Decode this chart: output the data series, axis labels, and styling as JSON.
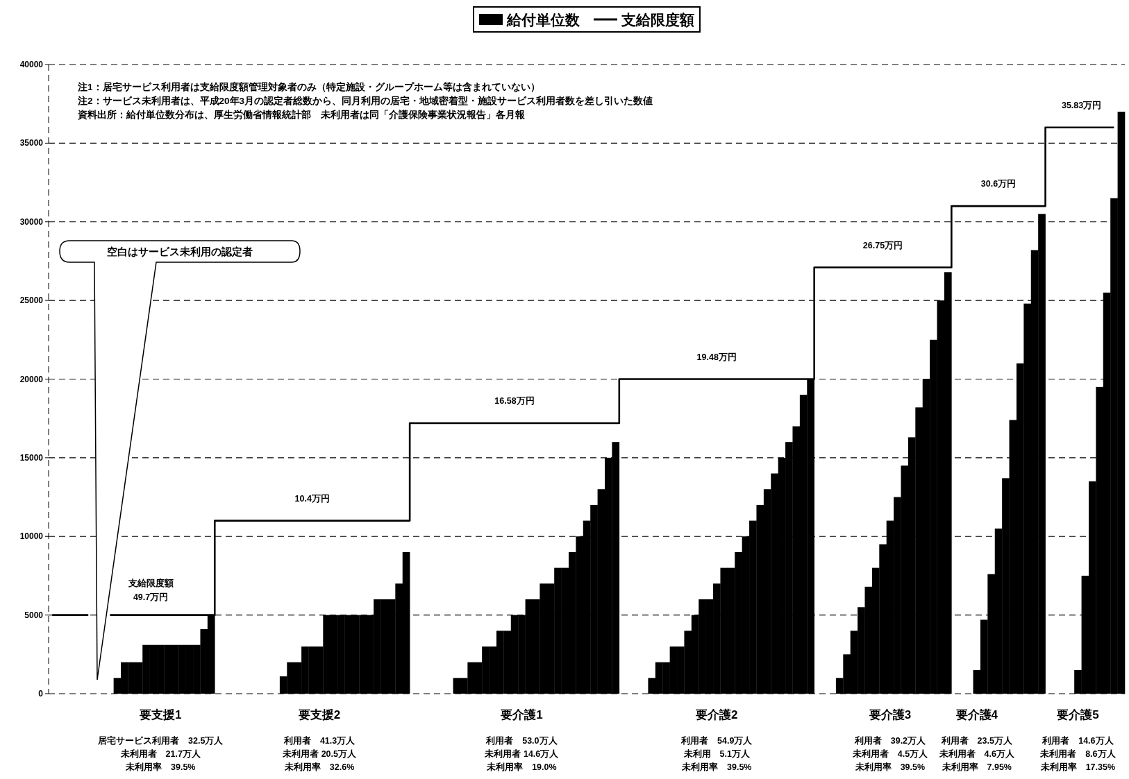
{
  "chart_data": {
    "type": "bar",
    "legend": "top",
    "grid": "y",
    "ylim": [
      0,
      40000
    ],
    "yticks": [
      0,
      5000,
      10000,
      15000,
      20000,
      25000,
      30000,
      35000,
      40000
    ],
    "categories": [
      null,
      null,
      null,
      null,
      null,
      null,
      null,
      null,
      null,
      null,
      null,
      null,
      null,
      null,
      null,
      "要支援1",
      null,
      null,
      null,
      null,
      null,
      null,
      null,
      null,
      null,
      null,
      null,
      null,
      null,
      null,
      null,
      null,
      null,
      null,
      null,
      null,
      null,
      "要支援2",
      null,
      null,
      null,
      null,
      null,
      null,
      null,
      null,
      null,
      null,
      null,
      null,
      null,
      null,
      null,
      null,
      null,
      null,
      null,
      null,
      null,
      null,
      null,
      null,
      null,
      null,
      null,
      "要介護1",
      null,
      null,
      null,
      null,
      null,
      null,
      null,
      null,
      null,
      null,
      null,
      null,
      null,
      null,
      null,
      null,
      null,
      null,
      null,
      null,
      null,
      null,
      null,
      null,
      null,
      null,
      "要介護2",
      null,
      null,
      null,
      null,
      null,
      null,
      null,
      null,
      null,
      null,
      null,
      null,
      null,
      null,
      null,
      null,
      null,
      null,
      null,
      null,
      null,
      null,
      null,
      "要介護3",
      null,
      null,
      null,
      null,
      null,
      null,
      null,
      null,
      null,
      null,
      null,
      "要介護4",
      null,
      null,
      null,
      null,
      null,
      null,
      null,
      null,
      null,
      null,
      null,
      null,
      null,
      "要介護5",
      null,
      null,
      null,
      null,
      null,
      null
    ],
    "series": [
      {
        "name": "給付単位数",
        "color": "#000000",
        "values": [
          null,
          null,
          null,
          null,
          null,
          null,
          null,
          null,
          null,
          1000,
          2000,
          2000,
          2000,
          3100,
          3100,
          3100,
          3100,
          3100,
          3100,
          3100,
          3100,
          4100,
          4950,
          null,
          null,
          null,
          null,
          null,
          null,
          null,
          null,
          null,
          1100,
          2000,
          2000,
          3000,
          3000,
          3000,
          5000,
          5000,
          5000,
          5000,
          5000,
          5000,
          5000,
          6000,
          6000,
          6000,
          7000,
          9000,
          null,
          null,
          null,
          null,
          null,
          null,
          1000,
          1000,
          2000,
          2000,
          3000,
          3000,
          4000,
          4000,
          5000,
          5000,
          6000,
          6000,
          7000,
          7000,
          8000,
          8000,
          9000,
          10000,
          11000,
          12000,
          13000,
          15000,
          16000,
          null,
          null,
          null,
          null,
          1000,
          2000,
          2000,
          3000,
          3000,
          4000,
          5000,
          6000,
          6000,
          7000,
          8000,
          8000,
          9000,
          10000,
          11000,
          12000,
          13000,
          14000,
          15000,
          16000,
          17000,
          19000,
          20000,
          null,
          null,
          null,
          1000,
          2500,
          4000,
          5500,
          6800,
          8000,
          9500,
          11000,
          12500,
          14500,
          16300,
          18200,
          20000,
          22500,
          25000,
          26800,
          null,
          null,
          null,
          1500,
          4700,
          7600,
          10500,
          13700,
          17400,
          21000,
          24800,
          28200,
          30500,
          null,
          null,
          null,
          null,
          1500,
          7500,
          13500,
          19500,
          25500,
          31500,
          37000
        ]
      },
      {
        "name": "支給限度額",
        "type": "step",
        "color": "#000000",
        "values": [
          5000,
          5000,
          5000,
          5000,
          5000,
          5000,
          null,
          null,
          5000,
          5000,
          5000,
          5000,
          5000,
          5000,
          5000,
          5000,
          5000,
          5000,
          5000,
          5000,
          5000,
          5000,
          5000,
          11000,
          11000,
          11000,
          11000,
          11000,
          11000,
          11000,
          11000,
          11000,
          11000,
          11000,
          11000,
          11000,
          11000,
          11000,
          11000,
          11000,
          11000,
          11000,
          11000,
          11000,
          11000,
          11000,
          11000,
          11000,
          11000,
          11000,
          17200,
          17200,
          17200,
          17200,
          17200,
          17200,
          17200,
          17200,
          17200,
          17200,
          17200,
          17200,
          17200,
          17200,
          17200,
          17200,
          17200,
          17200,
          17200,
          17200,
          17200,
          17200,
          17200,
          17200,
          17200,
          17200,
          17200,
          17200,
          17200,
          20000,
          20000,
          20000,
          20000,
          20000,
          20000,
          20000,
          20000,
          20000,
          20000,
          20000,
          20000,
          20000,
          20000,
          20000,
          20000,
          20000,
          20000,
          20000,
          20000,
          20000,
          20000,
          20000,
          20000,
          20000,
          20000,
          20000,
          27100,
          27100,
          27100,
          27100,
          27100,
          27100,
          27100,
          27100,
          27100,
          27100,
          27100,
          27100,
          27100,
          27100,
          27100,
          27100,
          27100,
          27100,
          27100,
          31000,
          31000,
          31000,
          31000,
          31000,
          31000,
          31000,
          31000,
          31000,
          31000,
          31000,
          31000,
          31000,
          36000,
          36000,
          36000,
          36000,
          36000,
          36000,
          36000,
          36000,
          36000,
          36000,
          null
        ]
      }
    ],
    "annotations": [
      "注1：居宅サービス利用者は支給限度額管理対象者のみ（特定施設・グループホーム等は含まれていない）",
      "注2：サービス未利用者は、平成20年3月の認定者総数から、同月利用の居宅・地域密着型・施設サービス利用者数を差し引いた数値",
      "資料出所：給付単位数分布は、厚生労働省情報統計部　未利用者は同「介護保険事業状況報告」各月報",
      "空白はサービス未利用の認定者",
      "支給限度額",
      "49.7万円",
      "10.4万円",
      "16.58万円",
      "19.48万円",
      "26.75万円",
      "30.6万円",
      "35.83万円",
      "居宅サービス利用者　32.5万人",
      "未利用者　21.7万人",
      "未利用率　39.5%",
      "利用者　41.3万人",
      "未利用者 20.5万人",
      "未利用率　32.6%",
      "利用者　53.0万人",
      "未利用者 14.6万人",
      "未利用率　19.0%",
      "利用者　54.9万人",
      "未利用　5.1万人",
      "未利用率　39.5%",
      "利用者　39.2万人",
      "未利用者　4.5万人",
      "未利用率　39.5%",
      "利用者　23.5万人",
      "未利用者　4.6万人",
      "未利用率　7.95%",
      "利用者　14.6万人",
      "未利用者　8.6万人",
      "未利用率　17.35%"
    ]
  }
}
